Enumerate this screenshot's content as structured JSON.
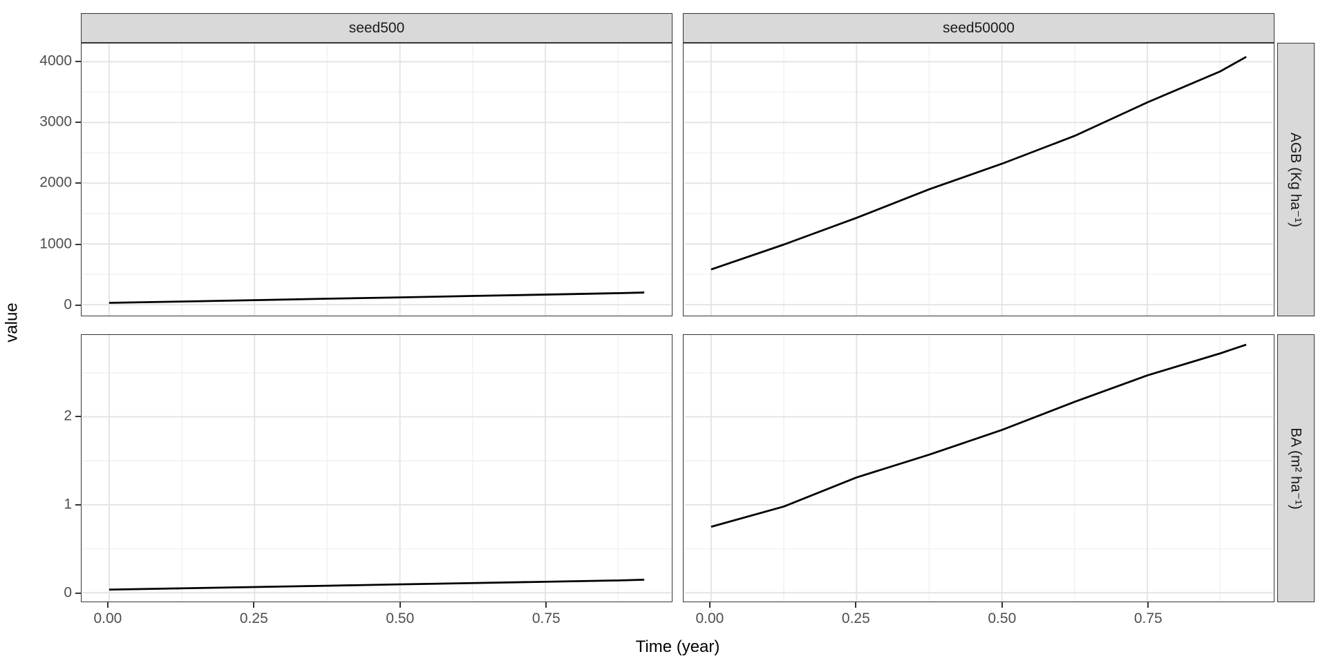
{
  "chart_data": {
    "type": "line",
    "title": "",
    "xlabel": "Time (year)",
    "ylabel": "value",
    "legend": "none",
    "grid": "on",
    "facet_columns": [
      "seed500",
      "seed50000"
    ],
    "facet_rows": [
      {
        "label": "AGB (Kg ha⁻¹)",
        "ylim": [
          -180,
          4300
        ],
        "y_ticks": [
          0,
          1000,
          2000,
          3000,
          4000
        ],
        "y_tick_labels": [
          "0",
          "1000",
          "2000",
          "3000",
          "4000"
        ],
        "y_minor": [
          500,
          1500,
          2500,
          3500
        ]
      },
      {
        "label": "BA (m² ha⁻¹)",
        "ylim": [
          -0.1,
          2.93
        ],
        "y_ticks": [
          0,
          1,
          2
        ],
        "y_tick_labels": [
          "0",
          "1",
          "2"
        ],
        "y_minor": [
          0.5,
          1.5,
          2.5
        ]
      }
    ],
    "xlim": [
      -0.046,
      0.966
    ],
    "x_ticks": [
      0,
      0.25,
      0.5,
      0.75
    ],
    "x_tick_labels": [
      "0.00",
      "0.25",
      "0.50",
      "0.75"
    ],
    "x_minor": [
      0.125,
      0.375,
      0.625,
      0.875
    ],
    "x": [
      0,
      0.125,
      0.25,
      0.375,
      0.5,
      0.625,
      0.75,
      0.875,
      0.92
    ],
    "series": [
      {
        "row": 0,
        "col": 0,
        "facet_row": "AGB (Kg ha⁻¹)",
        "facet_col": "seed500",
        "values": [
          30,
          52,
          75,
          98,
          120,
          143,
          166,
          190,
          200
        ]
      },
      {
        "row": 0,
        "col": 1,
        "facet_row": "AGB (Kg ha⁻¹)",
        "facet_col": "seed50000",
        "values": [
          580,
          990,
          1430,
          1900,
          2320,
          2780,
          3330,
          3840,
          4080
        ]
      },
      {
        "row": 1,
        "col": 0,
        "facet_row": "BA (m² ha⁻¹)",
        "facet_col": "seed500",
        "values": [
          0.035,
          0.05,
          0.065,
          0.08,
          0.095,
          0.11,
          0.125,
          0.14,
          0.148
        ]
      },
      {
        "row": 1,
        "col": 1,
        "facet_row": "BA (m² ha⁻¹)",
        "facet_col": "seed50000",
        "values": [
          0.75,
          0.98,
          1.31,
          1.57,
          1.85,
          2.17,
          2.47,
          2.72,
          2.82
        ]
      }
    ],
    "colors": {
      "line": "#000000",
      "grid_major": "#e4e4e4",
      "grid_minor": "#f1f1f1",
      "strip_fill": "#d9d9d9",
      "panel_border": "#333333",
      "axis_text": "#4d4d4d",
      "axis_title": "#000000",
      "background": "#ffffff"
    }
  }
}
